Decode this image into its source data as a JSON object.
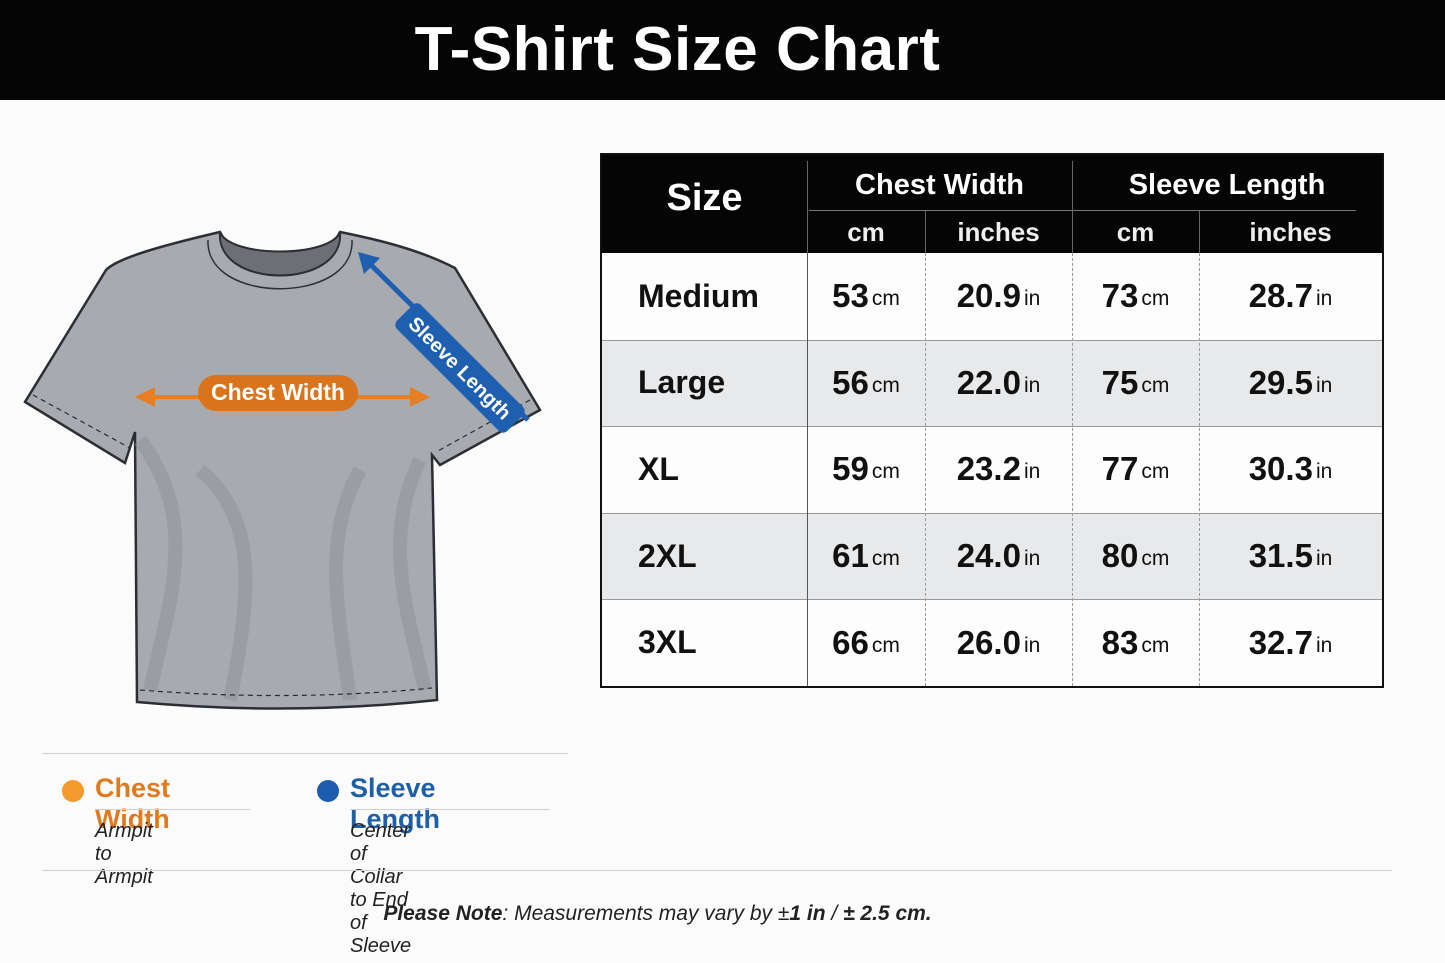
{
  "header": {
    "title": "T-Shirt Size Chart"
  },
  "illustration": {
    "chest_label": "Chest Width",
    "sleeve_label": "Sleeve Length"
  },
  "table": {
    "size_header": "Size",
    "groups": [
      {
        "name": "Chest Width",
        "units": [
          "cm",
          "inches"
        ]
      },
      {
        "name": "Sleeve Length",
        "units": [
          "cm",
          "inches"
        ]
      }
    ],
    "rows": [
      {
        "size": "Medium",
        "cells": [
          {
            "value": "53",
            "unit": "cm"
          },
          {
            "value": "20.9",
            "unit": "in"
          },
          {
            "value": "73",
            "unit": "cm"
          },
          {
            "value": "28.7",
            "unit": "in"
          }
        ]
      },
      {
        "size": "Large",
        "cells": [
          {
            "value": "56",
            "unit": "cm"
          },
          {
            "value": "22.0",
            "unit": "in"
          },
          {
            "value": "75",
            "unit": "cm"
          },
          {
            "value": "29.5",
            "unit": "in"
          }
        ]
      },
      {
        "size": "XL",
        "cells": [
          {
            "value": "59",
            "unit": "cm"
          },
          {
            "value": "23.2",
            "unit": "in"
          },
          {
            "value": "77",
            "unit": "cm"
          },
          {
            "value": "30.3",
            "unit": "in"
          }
        ]
      },
      {
        "size": "2XL",
        "cells": [
          {
            "value": "61",
            "unit": "cm"
          },
          {
            "value": "24.0",
            "unit": "in"
          },
          {
            "value": "80",
            "unit": "cm"
          },
          {
            "value": "31.5",
            "unit": "in"
          }
        ]
      },
      {
        "size": "3XL",
        "cells": [
          {
            "value": "66",
            "unit": "cm"
          },
          {
            "value": "26.0",
            "unit": "in"
          },
          {
            "value": "83",
            "unit": "cm"
          },
          {
            "value": "32.7",
            "unit": "in"
          }
        ]
      }
    ]
  },
  "legend": [
    {
      "name": "Chest Width",
      "description": "Armpit to Armpit"
    },
    {
      "name": "Sleeve Length",
      "description": "Center of Collar to End of Sleeve"
    }
  ],
  "note": {
    "label": "Please Note",
    "text": ": Measurements may vary by ±",
    "amount_in": "1 in",
    "separator": " / ",
    "amount_cm": "± 2.5 cm."
  }
}
